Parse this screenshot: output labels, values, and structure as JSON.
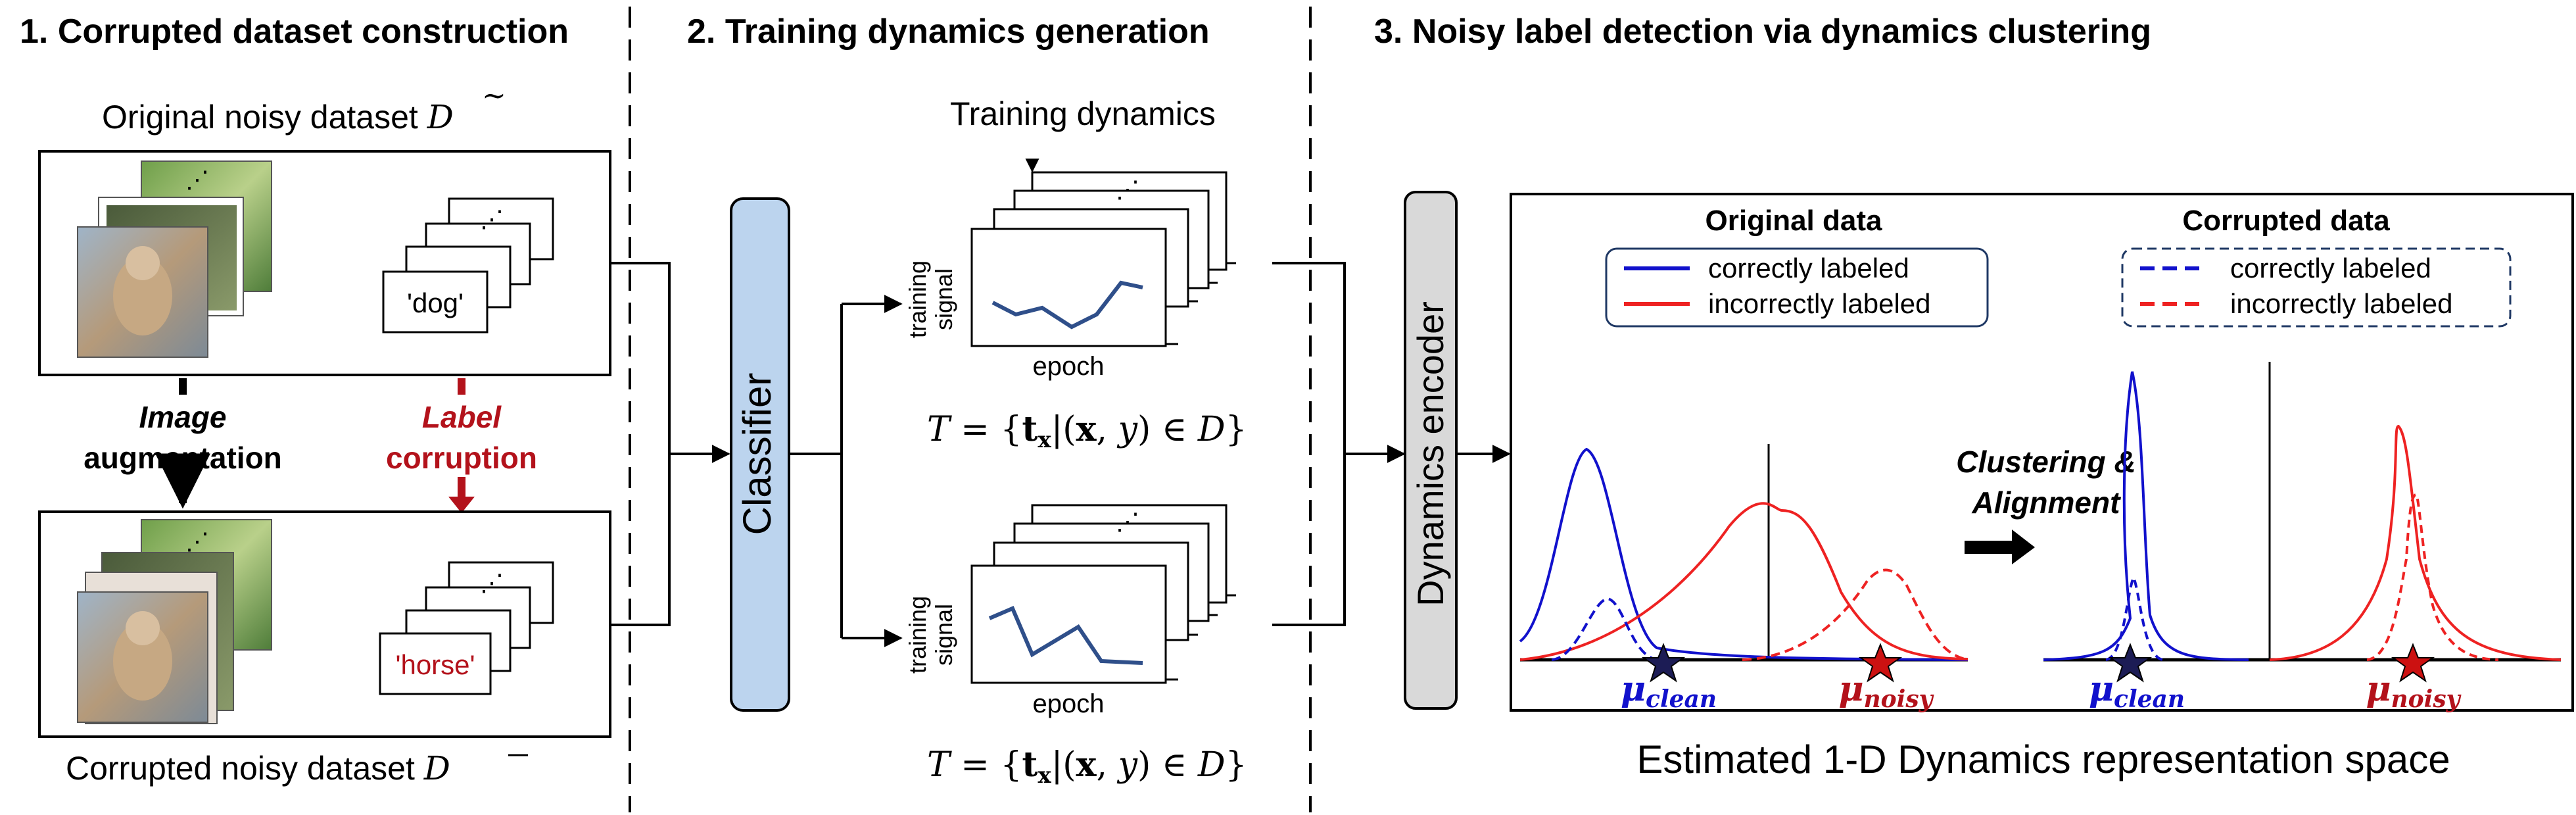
{
  "sections": {
    "s1": "1. Corrupted dataset construction",
    "s2": "2. Training dynamics generation",
    "s3": "3. Noisy label detection via dynamics clustering"
  },
  "stage1": {
    "original_title": "Original noisy dataset",
    "original_symbol": "D",
    "corrupted_title": "Corrupted noisy dataset",
    "corrupted_symbol": "D",
    "ellipsis": "⋰",
    "label_dog": "'dog'",
    "label_horse": "'horse'",
    "aug_line1": "Image",
    "aug_line2": "augmentation",
    "corr_line1": "Label",
    "corr_line2": "corruption"
  },
  "stage2": {
    "classifier": "Classifier",
    "dyn_title": "Training dynamics",
    "ylabel_1": "training",
    "ylabel_2": "signal",
    "xlabel": "epoch",
    "ellipsis": "⋰",
    "formula_top": {
      "lhs": "T",
      "eq": " = {",
      "t": "t",
      "t_sub": "x",
      "mid": "|(",
      "x": "x",
      "comma": ", ",
      "y": "y",
      "in": ") ∈ ",
      "D": "D",
      "close": "}"
    },
    "formula_bottom": {
      "lhs": "T",
      "eq": " = {",
      "t": "t",
      "t_sub": "x",
      "mid": "|(",
      "x": "x",
      "comma": ", ",
      "y": "y",
      "in": ") ∈ ",
      "D": "D",
      "close": "}"
    }
  },
  "stage3": {
    "encoder": "Dynamics encoder",
    "original_title": "Original data",
    "corrupted_title": "Corrupted data",
    "legend": {
      "correct": "correctly labeled",
      "incorrect": "incorrectly labeled"
    },
    "clustering_line1": "Clustering &",
    "clustering_line2": "Alignment",
    "mu": "μ",
    "clean": "clean",
    "noisy": "noisy",
    "space_caption": "Estimated 1-D Dynamics representation space"
  },
  "colors": {
    "blue": "#1111cc",
    "red": "#ee2222",
    "dark_red": "#b3121b",
    "classifier_fill": "#bcd4ee",
    "encoder_fill": "#d9d9d9",
    "line_plot": "#2f4f8a",
    "legend_border": "#1f3864"
  }
}
